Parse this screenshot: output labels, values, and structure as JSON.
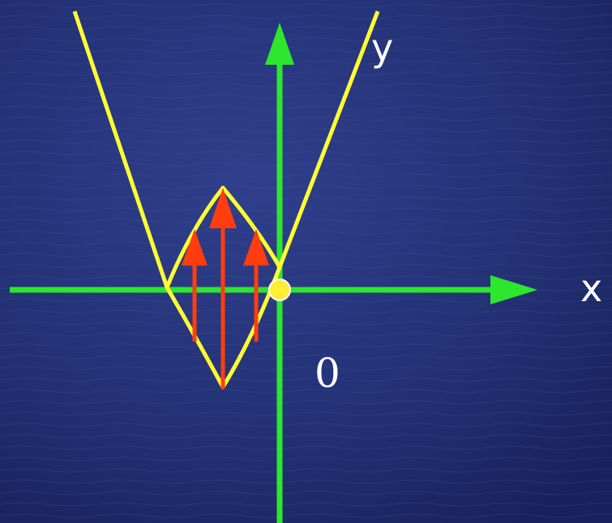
{
  "labels": {
    "x_axis": "x",
    "y_axis": "y",
    "origin": "0"
  },
  "colors": {
    "background": "#1f2c6e",
    "axes": "#2ee62e",
    "curves": "#ffff33",
    "arrows": "#ff3d0f",
    "origin_point": "#ffee33"
  },
  "icons": {
    "axis_heads": "triangle-arrowhead",
    "origin_marker": "filled-circle"
  }
}
